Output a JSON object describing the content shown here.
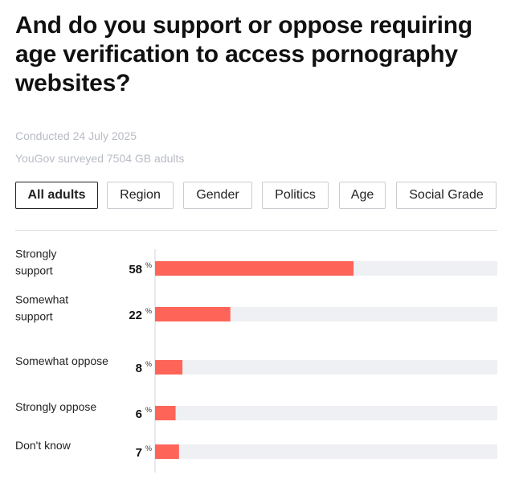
{
  "header": {
    "title": "And do you support or oppose requiring age verification to access pornography websites?",
    "conducted": "Conducted 24 July 2025",
    "surveyed": "YouGov surveyed 7504 GB adults"
  },
  "tabs": [
    {
      "label": "All adults",
      "active": true
    },
    {
      "label": "Region",
      "active": false
    },
    {
      "label": "Gender",
      "active": false
    },
    {
      "label": "Politics",
      "active": false
    },
    {
      "label": "Age",
      "active": false
    },
    {
      "label": "Social Grade",
      "active": false
    }
  ],
  "colors": {
    "bar": "#ff6459",
    "track": "#eff0f3",
    "axis": "#d3d5da"
  },
  "chart_data": {
    "type": "bar",
    "orientation": "horizontal",
    "categories": [
      "Strongly support",
      "Somewhat support",
      "Somewhat oppose",
      "Strongly oppose",
      "Don't know"
    ],
    "values": [
      58,
      22,
      8,
      6,
      7
    ],
    "unit": "%",
    "xlim": [
      0,
      100
    ],
    "grid": false
  }
}
